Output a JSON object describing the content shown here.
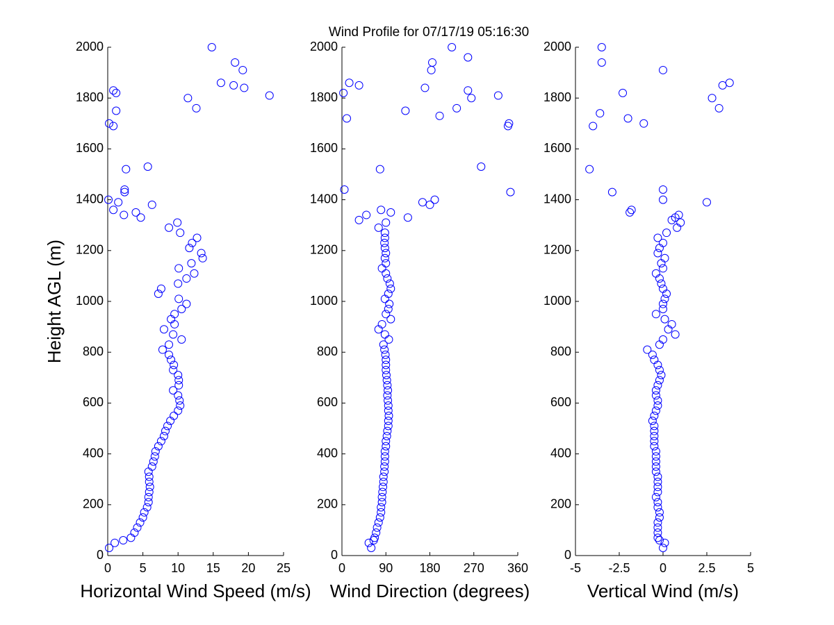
{
  "title": "Wind Profile for  07/17/19 05:16:30",
  "chart_data": [
    {
      "type": "scatter",
      "xlabel": "Horizontal Wind Speed (m/s)",
      "ylabel": "Height AGL (m)",
      "color": "#0000ff",
      "xlim": [
        0,
        25
      ],
      "xticks": [
        0,
        5,
        10,
        15,
        20,
        25
      ],
      "ylim": [
        0,
        2000
      ],
      "yticks": [
        0,
        200,
        400,
        600,
        800,
        1000,
        1200,
        1400,
        1600,
        1800,
        2000
      ],
      "x": [
        0.2,
        1.0,
        2.2,
        3.3,
        3.8,
        4.2,
        4.6,
        5.0,
        5.2,
        5.6,
        5.8,
        5.8,
        5.9,
        6.0,
        5.9,
        5.9,
        5.8,
        6.3,
        6.5,
        6.7,
        6.8,
        7.2,
        7.6,
        8.0,
        8.2,
        8.5,
        8.9,
        9.4,
        10.0,
        10.3,
        10.2,
        10.0,
        9.3,
        10.1,
        10.1,
        10.0,
        9.3,
        9.4,
        9.0,
        8.7,
        7.8,
        8.7,
        10.5,
        9.3,
        8.0,
        9.5,
        9.0,
        9.5,
        10.5,
        11.2,
        10.1,
        7.2,
        7.6,
        10.0,
        11.2,
        12.3,
        10.1,
        11.9,
        13.5,
        13.3,
        11.6,
        12.0,
        12.7,
        10.3,
        8.7,
        9.9,
        4.7,
        2.3,
        4.0,
        0.8,
        6.3,
        1.5,
        0.1,
        2.4,
        2.4,
        2.6,
        5.7,
        0.8,
        0.2,
        1.2,
        12.6,
        11.4,
        23.0,
        1.2,
        0.8,
        19.4,
        17.9,
        16.1,
        19.2,
        18.1,
        14.8
      ],
      "y": [
        30,
        50,
        60,
        70,
        90,
        110,
        130,
        150,
        170,
        190,
        210,
        230,
        250,
        270,
        290,
        310,
        330,
        350,
        370,
        390,
        410,
        430,
        450,
        470,
        490,
        510,
        530,
        550,
        570,
        590,
        610,
        630,
        650,
        670,
        690,
        710,
        730,
        750,
        770,
        790,
        810,
        830,
        850,
        870,
        890,
        910,
        930,
        950,
        970,
        990,
        1010,
        1030,
        1050,
        1070,
        1090,
        1110,
        1130,
        1150,
        1170,
        1190,
        1210,
        1230,
        1250,
        1270,
        1290,
        1310,
        1330,
        1340,
        1350,
        1360,
        1380,
        1390,
        1400,
        1430,
        1440,
        1520,
        1530,
        1690,
        1700,
        1750,
        1760,
        1800,
        1810,
        1820,
        1830,
        1840,
        1850,
        1860,
        1910,
        1940,
        2000
      ]
    },
    {
      "type": "scatter",
      "xlabel": "Wind Direction (degrees)",
      "color": "#0000ff",
      "xlim": [
        0,
        360
      ],
      "xticks": [
        0,
        90,
        180,
        270,
        360
      ],
      "ylim": [
        0,
        2000
      ],
      "yticks": [
        0,
        200,
        400,
        600,
        800,
        1000,
        1200,
        1400,
        1600,
        1800,
        2000
      ],
      "x": [
        60,
        55,
        65,
        67,
        70,
        72,
        75,
        78,
        80,
        80,
        82,
        82,
        83,
        84,
        85,
        85,
        87,
        87,
        88,
        88,
        88,
        90,
        90,
        92,
        93,
        95,
        95,
        96,
        95,
        95,
        94,
        93,
        94,
        93,
        92,
        91,
        90,
        90,
        90,
        89,
        87,
        85,
        96,
        88,
        75,
        82,
        100,
        90,
        95,
        97,
        88,
        95,
        100,
        98,
        93,
        90,
        82,
        90,
        88,
        90,
        88,
        87,
        88,
        88,
        75,
        90,
        35,
        135,
        50,
        100,
        80,
        180,
        165,
        190,
        345,
        5,
        78,
        285,
        340,
        342,
        10,
        200,
        130,
        235,
        265,
        320,
        3,
        258,
        170,
        35,
        15,
        183,
        185,
        258,
        225
      ],
      "y": [
        30,
        50,
        60,
        70,
        90,
        110,
        130,
        150,
        170,
        190,
        210,
        230,
        250,
        270,
        290,
        310,
        330,
        350,
        370,
        390,
        410,
        430,
        450,
        470,
        490,
        510,
        530,
        550,
        570,
        590,
        610,
        630,
        650,
        670,
        690,
        710,
        730,
        750,
        770,
        790,
        810,
        830,
        850,
        870,
        890,
        910,
        930,
        950,
        970,
        990,
        1010,
        1030,
        1050,
        1070,
        1090,
        1110,
        1130,
        1150,
        1170,
        1190,
        1210,
        1230,
        1250,
        1270,
        1290,
        1310,
        1320,
        1330,
        1340,
        1350,
        1360,
        1380,
        1390,
        1400,
        1430,
        1440,
        1520,
        1530,
        1690,
        1700,
        1720,
        1730,
        1750,
        1760,
        1800,
        1810,
        1820,
        1830,
        1840,
        1850,
        1860,
        1910,
        1940,
        1960,
        2000
      ]
    },
    {
      "type": "scatter",
      "xlabel": "Vertical Wind (m/s)",
      "color": "#0000ff",
      "xlim": [
        -5,
        5
      ],
      "xticks": [
        -5,
        -2.5,
        0,
        2.5,
        5
      ],
      "ylim": [
        0,
        2000
      ],
      "yticks": [
        0,
        200,
        400,
        600,
        800,
        1000,
        1200,
        1400,
        1600,
        1800,
        2000
      ],
      "x": [
        0.0,
        0.1,
        -0.2,
        -0.3,
        -0.3,
        -0.3,
        -0.3,
        -0.2,
        -0.2,
        -0.3,
        -0.3,
        -0.4,
        -0.3,
        -0.3,
        -0.3,
        -0.3,
        -0.4,
        -0.4,
        -0.4,
        -0.4,
        -0.4,
        -0.5,
        -0.5,
        -0.5,
        -0.5,
        -0.5,
        -0.6,
        -0.5,
        -0.4,
        -0.3,
        -0.3,
        -0.4,
        -0.4,
        -0.3,
        -0.2,
        -0.1,
        -0.2,
        -0.3,
        -0.5,
        -0.6,
        -0.9,
        -0.2,
        0.0,
        0.7,
        0.3,
        0.5,
        0.1,
        -0.4,
        0.0,
        0.0,
        0.1,
        0.2,
        0.0,
        -0.1,
        -0.2,
        -0.4,
        0.0,
        -0.1,
        0.1,
        -0.3,
        -0.2,
        0.0,
        -0.3,
        0.2,
        0.8,
        1.0,
        0.5,
        0.7,
        0.9,
        -1.9,
        -1.8,
        2.5,
        0.0,
        -2.9,
        0.0,
        -4.2,
        -4.0,
        -1.1,
        -2.0,
        -3.6,
        3.2,
        2.8,
        -2.3,
        3.4,
        3.8,
        0.0,
        -3.5,
        -3.5
      ],
      "y": [
        30,
        50,
        60,
        70,
        90,
        110,
        130,
        150,
        170,
        190,
        210,
        230,
        250,
        270,
        290,
        310,
        330,
        350,
        370,
        390,
        410,
        430,
        450,
        470,
        490,
        510,
        530,
        550,
        570,
        590,
        610,
        630,
        650,
        670,
        690,
        710,
        730,
        750,
        770,
        790,
        810,
        830,
        850,
        870,
        890,
        910,
        930,
        950,
        970,
        990,
        1010,
        1030,
        1050,
        1070,
        1090,
        1110,
        1130,
        1150,
        1170,
        1190,
        1210,
        1230,
        1250,
        1270,
        1290,
        1310,
        1320,
        1330,
        1340,
        1350,
        1360,
        1390,
        1400,
        1430,
        1440,
        1520,
        1690,
        1700,
        1720,
        1740,
        1760,
        1800,
        1820,
        1850,
        1860,
        1910,
        1940,
        2000
      ]
    }
  ]
}
